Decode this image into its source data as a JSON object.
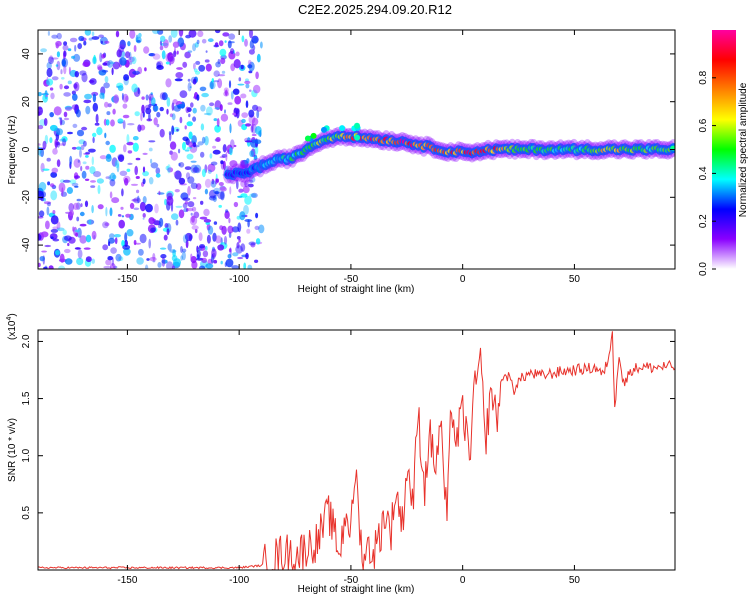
{
  "title": "C2E2.2025.294.09.20.R12",
  "colors": {
    "signal_line": "#e8332c",
    "axis": "#000000",
    "background": "#ffffff"
  },
  "colorbar": {
    "label": "Normalized spectral amplitude",
    "range": [
      0.0,
      1.0
    ],
    "ticks": [
      {
        "value": 0.0,
        "label": "0.0"
      },
      {
        "value": 0.2,
        "label": "0.2"
      },
      {
        "value": 0.4,
        "label": "0.4"
      },
      {
        "value": 0.6,
        "label": "0.6"
      },
      {
        "value": 0.8,
        "label": "0.8"
      }
    ],
    "stops": [
      "#ffffff",
      "#8a00ff",
      "#0000ff",
      "#00ffff",
      "#00ff00",
      "#ffff00",
      "#ff8000",
      "#ff0000",
      "#ff00a0"
    ]
  },
  "chart_data": [
    {
      "type": "heatmap",
      "title": "C2E2.2025.294.09.20.R12",
      "xlabel": "Height of straight line (km)",
      "ylabel": "Frequency (Hz)",
      "xlim": [
        -190,
        95
      ],
      "ylim": [
        -50,
        50
      ],
      "xticks": [
        {
          "value": -150,
          "label": "-150"
        },
        {
          "value": -100,
          "label": "-100"
        },
        {
          "value": -50,
          "label": "-50"
        },
        {
          "value": 0,
          "label": "0"
        },
        {
          "value": 50,
          "label": "50"
        }
      ],
      "yticks": [
        {
          "value": -40,
          "label": "-40"
        },
        {
          "value": -20,
          "label": "-20"
        },
        {
          "value": 0,
          "label": "0"
        },
        {
          "value": 20,
          "label": "20"
        },
        {
          "value": 40,
          "label": "40"
        }
      ],
      "noise_region_x": [
        -190,
        -90
      ],
      "signal_ridge": {
        "x": [
          -105,
          -95,
          -85,
          -75,
          -65,
          -55,
          -45,
          -35,
          -25,
          -15,
          -5,
          5,
          15,
          25,
          35,
          45,
          55,
          65,
          75,
          85,
          95
        ],
        "frequency": [
          -11,
          -9,
          -5,
          -3,
          3,
          6,
          5,
          4,
          3,
          1,
          -1,
          -1,
          0,
          0,
          0,
          0,
          0,
          0,
          0,
          0,
          0
        ],
        "amplitude": [
          0.25,
          0.3,
          0.4,
          0.45,
          0.55,
          0.6,
          0.85,
          0.85,
          0.9,
          0.8,
          0.85,
          0.85,
          0.8,
          0.55,
          0.5,
          0.45,
          0.5,
          0.75,
          0.55,
          0.5,
          0.5
        ]
      }
    },
    {
      "type": "line",
      "xlabel": "Height of straight line (km)",
      "ylabel": "SNR (10 * v/v)",
      "multiplier_label": "(x10",
      "multiplier_exp": "4",
      "multiplier_close": ")",
      "xlim": [
        -190,
        95
      ],
      "ylim": [
        0,
        2.1
      ],
      "xticks": [
        {
          "value": -150,
          "label": "-150"
        },
        {
          "value": -100,
          "label": "-100"
        },
        {
          "value": -50,
          "label": "-50"
        },
        {
          "value": 0,
          "label": "0"
        },
        {
          "value": 50,
          "label": "50"
        }
      ],
      "yticks": [
        {
          "value": 0.5,
          "label": "0.5"
        },
        {
          "value": 1.0,
          "label": "1.0"
        },
        {
          "value": 1.5,
          "label": "1.5"
        },
        {
          "value": 2.0,
          "label": "2.0"
        }
      ],
      "series": [
        {
          "name": "SNR",
          "x": [
            -190,
            -180,
            -170,
            -160,
            -150,
            -140,
            -130,
            -120,
            -110,
            -100,
            -95,
            -90,
            -85,
            -80,
            -75,
            -70,
            -65,
            -60,
            -55,
            -52,
            -50,
            -48,
            -45,
            -42,
            -40,
            -37,
            -35,
            -32,
            -30,
            -27,
            -25,
            -22,
            -20,
            -17,
            -15,
            -12,
            -10,
            -7,
            -5,
            -3,
            0,
            3,
            5,
            8,
            10,
            13,
            15,
            18,
            20,
            23,
            25,
            28,
            30,
            35,
            40,
            45,
            50,
            55,
            60,
            63,
            65,
            67,
            68,
            70,
            72,
            75,
            80,
            85,
            90,
            95
          ],
          "y": [
            0.02,
            0.02,
            0.02,
            0.02,
            0.02,
            0.02,
            0.02,
            0.02,
            0.02,
            0.02,
            0.03,
            0.04,
            0.1,
            0.16,
            0.12,
            0.2,
            0.25,
            0.5,
            0.15,
            0.55,
            0.3,
            0.9,
            0.1,
            0.2,
            0.15,
            0.3,
            0.5,
            0.35,
            0.7,
            0.4,
            0.9,
            0.6,
            1.4,
            0.7,
            1.2,
            0.9,
            1.3,
            0.4,
            1.5,
            1.1,
            1.4,
            1.0,
            1.5,
            1.9,
            1.1,
            1.6,
            1.3,
            1.7,
            1.7,
            1.6,
            1.65,
            1.7,
            1.72,
            1.7,
            1.72,
            1.74,
            1.75,
            1.76,
            1.77,
            1.7,
            1.85,
            2.05,
            1.5,
            1.9,
            1.6,
            1.75,
            1.78,
            1.77,
            1.78,
            1.78
          ]
        }
      ]
    }
  ]
}
